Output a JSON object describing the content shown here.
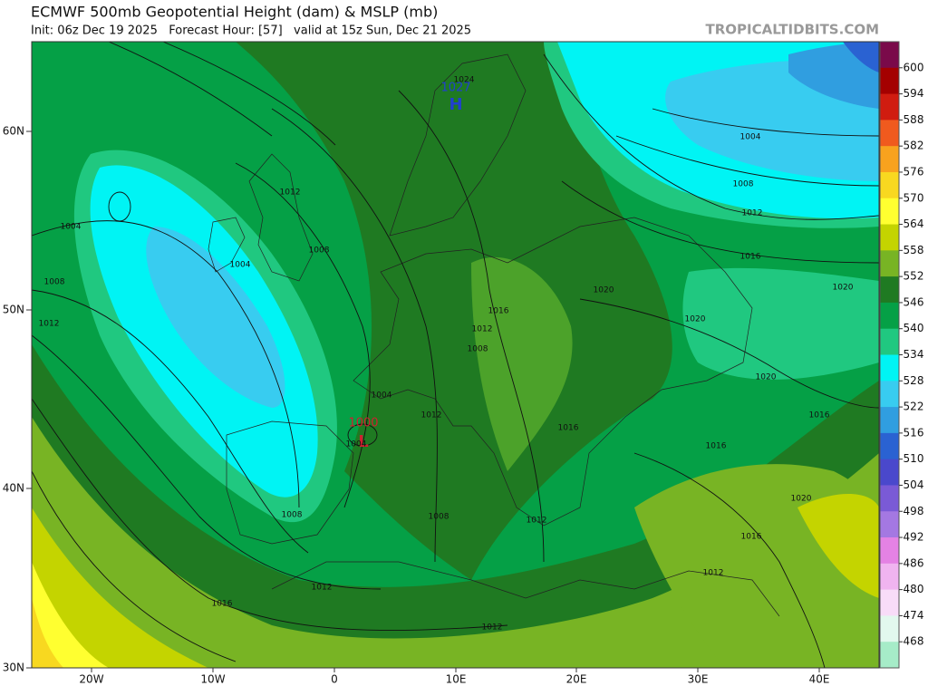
{
  "header": {
    "title": "ECMWF 500mb Geopotential Height (dam) & MSLP (mb)",
    "subtitle": "Init: 06z Dec 19 2025   Forecast Hour: [57]   valid at 15z Sun, Dec 21 2025",
    "source": "TROPICALTIDBITS.COM"
  },
  "colorbar": {
    "levels": [
      600,
      594,
      588,
      582,
      576,
      570,
      564,
      558,
      552,
      546,
      540,
      534,
      528,
      522,
      516,
      510,
      504,
      498,
      492,
      486,
      480,
      474,
      468
    ],
    "colors": [
      "#7a0a4a",
      "#a40000",
      "#d01c10",
      "#f05a1e",
      "#f8a21e",
      "#f8d820",
      "#ffff30",
      "#c4d400",
      "#78b424",
      "#1f7a22",
      "#05a046",
      "#20c880",
      "#00f4f4",
      "#38ccf0",
      "#309ee0",
      "#2a62d2",
      "#4a48cc",
      "#7a5ad6",
      "#a478e2",
      "#e482e4",
      "#f0b4f0",
      "#f8dcf8",
      "#e2f8ee",
      "#a6ecc8"
    ]
  },
  "axes": {
    "lat_labels": [
      "60N",
      "50N",
      "40N",
      "30N"
    ],
    "lon_labels": [
      "20W",
      "10W",
      "0",
      "10E",
      "20E",
      "30E",
      "40E"
    ]
  },
  "pressure_centers": [
    {
      "label": "H",
      "value": 1027
    },
    {
      "label": "L",
      "value": 1000
    }
  ],
  "isobar_labels": [
    1024,
    1012,
    1004,
    1008,
    1004,
    1008,
    1012,
    1004,
    1004,
    1008,
    1008,
    1012,
    1016,
    1012,
    1008,
    1016,
    1012,
    1012,
    1012,
    1012,
    1016,
    1016,
    1020,
    1016,
    1016,
    1020,
    1020,
    1020,
    1016,
    1012,
    1008,
    1004,
    1020
  ]
}
